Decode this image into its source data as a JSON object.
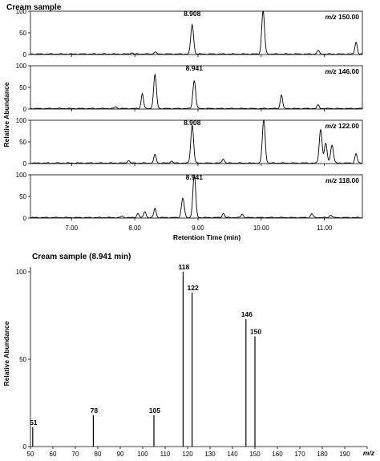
{
  "chart_data": [
    {
      "type": "line",
      "title": "Cream sample",
      "xlabel": "Retention Time (min)",
      "ylabel": "Relative Abundance",
      "xlim": [
        6.35,
        11.6
      ],
      "ylim": [
        0,
        100
      ],
      "x_ticks": [
        7.0,
        8.0,
        9.0,
        10.0,
        11.0
      ],
      "x_tick_labels": [
        "7.00",
        "8.00",
        "9.00",
        "10.00",
        "11.00"
      ],
      "y_ticks": [
        0,
        50,
        100
      ],
      "series": [
        {
          "mz_prefix": "m/z",
          "mz_value": "150.00",
          "peak_label": "8.908",
          "peak_label_at": 8.908,
          "peaks": [
            [
              8.908,
              68
            ],
            [
              10.03,
              100
            ],
            [
              11.5,
              28
            ],
            [
              10.9,
              8
            ],
            [
              8.32,
              5
            ],
            [
              7.95,
              3
            ]
          ]
        },
        {
          "mz_prefix": "m/z",
          "mz_value": "146.00",
          "peak_label": "8.941",
          "peak_label_at": 8.941,
          "peaks": [
            [
              8.941,
              65
            ],
            [
              8.32,
              78
            ],
            [
              8.12,
              35
            ],
            [
              10.32,
              32
            ],
            [
              10.9,
              8
            ],
            [
              7.7,
              4
            ]
          ]
        },
        {
          "mz_prefix": "m/z",
          "mz_value": "122.00",
          "peak_label": "8.908",
          "peak_label_at": 8.908,
          "peaks": [
            [
              8.908,
              88
            ],
            [
              10.04,
              100
            ],
            [
              10.94,
              78
            ],
            [
              11.02,
              45
            ],
            [
              11.12,
              42
            ],
            [
              11.5,
              22
            ],
            [
              8.32,
              20
            ],
            [
              7.9,
              6
            ],
            [
              9.4,
              10
            ],
            [
              8.58,
              5
            ]
          ]
        },
        {
          "mz_prefix": "m/z",
          "mz_value": "118.00",
          "peak_label": "8.941",
          "peak_label_at": 8.941,
          "peaks": [
            [
              8.941,
              100
            ],
            [
              8.76,
              45
            ],
            [
              8.32,
              22
            ],
            [
              8.16,
              14
            ],
            [
              8.05,
              10
            ],
            [
              9.4,
              10
            ],
            [
              9.7,
              8
            ],
            [
              10.8,
              9
            ],
            [
              11.1,
              6
            ],
            [
              7.8,
              3
            ]
          ]
        }
      ]
    },
    {
      "type": "bar",
      "title": "Cream sample (8.941 min)",
      "xlabel": "m/z",
      "ylabel": "Relative Abundance",
      "xlim": [
        50,
        200
      ],
      "ylim": [
        0,
        100
      ],
      "x_ticks": [
        50,
        60,
        70,
        80,
        90,
        100,
        110,
        120,
        130,
        140,
        150,
        160,
        170,
        180,
        190,
        200
      ],
      "y_ticks": [
        0,
        50,
        100
      ],
      "sticks": [
        {
          "mz": 51,
          "value": 11,
          "label": "51"
        },
        {
          "mz": 78,
          "value": 18,
          "label": "78"
        },
        {
          "mz": 105,
          "value": 18,
          "label": "105"
        },
        {
          "mz": 118,
          "value": 100,
          "label": "118"
        },
        {
          "mz": 122,
          "value": 88,
          "label": "122"
        },
        {
          "mz": 146,
          "value": 73,
          "label": "146"
        },
        {
          "mz": 150,
          "value": 63,
          "label": "150"
        }
      ]
    }
  ]
}
